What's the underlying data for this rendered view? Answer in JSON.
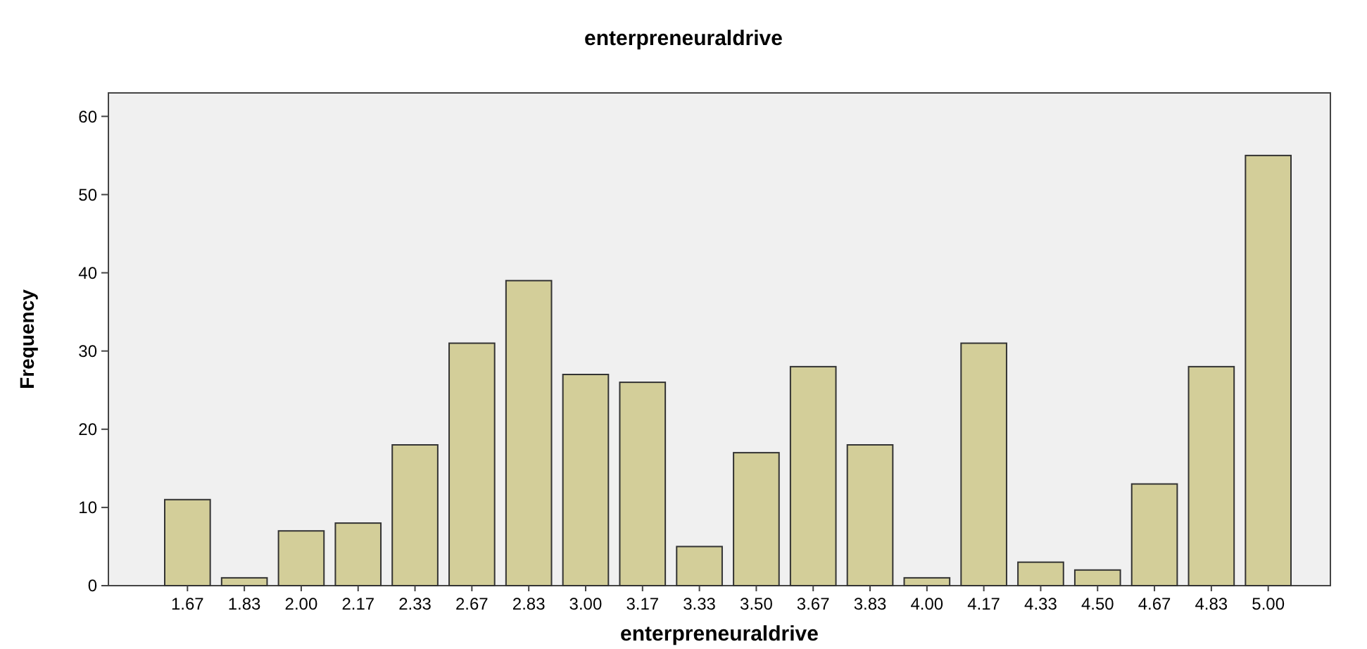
{
  "chart_data": {
    "type": "bar",
    "title": "enterpreneuraldrive",
    "xlabel": "enterpreneuraldrive",
    "ylabel": "Frequency",
    "categories": [
      "1.67",
      "1.83",
      "2.00",
      "2.17",
      "2.33",
      "2.67",
      "2.83",
      "3.00",
      "3.17",
      "3.33",
      "3.50",
      "3.67",
      "3.83",
      "4.00",
      "4.17",
      "4.33",
      "4.50",
      "4.67",
      "4.83",
      "5.00"
    ],
    "values": [
      11,
      1,
      7,
      8,
      18,
      31,
      39,
      27,
      26,
      5,
      17,
      28,
      18,
      1,
      31,
      3,
      2,
      13,
      28,
      55
    ],
    "color": "#d3ce99",
    "ylim": [
      0,
      63
    ],
    "yticks": [
      0,
      10,
      20,
      30,
      40,
      50,
      60
    ],
    "grid": false
  }
}
